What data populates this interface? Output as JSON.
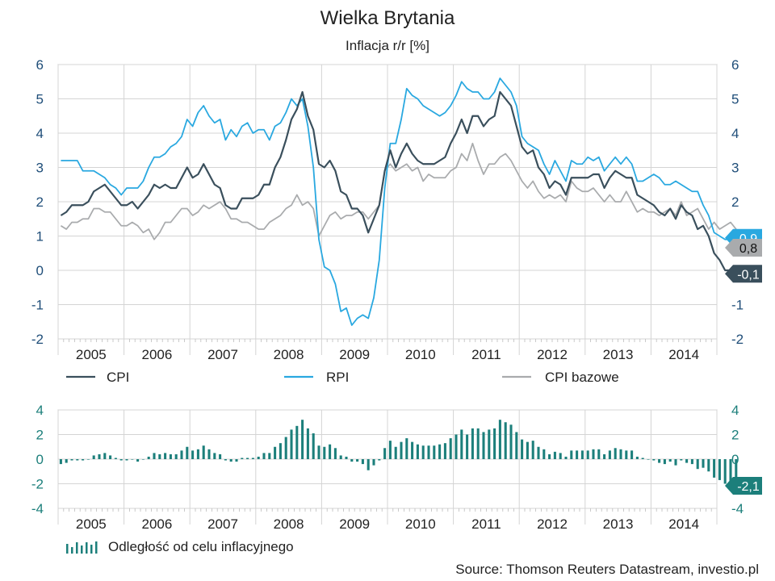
{
  "title": "Wielka Brytania",
  "subtitle": "Inflacja r/r [%]",
  "source": "Source: Thomson Reuters Datastream, investio.pl",
  "colors": {
    "cpi": "#3a4f5c",
    "rpi": "#29a8e0",
    "core": "#a9abad",
    "gap": "#1c7f7b",
    "grid": "#cfcfcf"
  },
  "chart_data": [
    {
      "type": "line",
      "title": "Wielka Brytania",
      "subtitle": "Inflacja r/r [%]",
      "x_labels": [
        "2005",
        "2006",
        "2007",
        "2008",
        "2009",
        "2010",
        "2011",
        "2012",
        "2013",
        "2014"
      ],
      "x_range": [
        "2005-01",
        "2014-12"
      ],
      "ylim": [
        -2,
        6
      ],
      "y_ticks": [
        -2,
        -1,
        0,
        1,
        2,
        3,
        4,
        5,
        6
      ],
      "y_tick_labels": [
        "-2",
        "-1",
        "0",
        "1",
        "2",
        "3",
        "4",
        "5",
        "6"
      ],
      "grid": true,
      "legend_position": "bottom",
      "series": [
        {
          "name": "CPI",
          "color": "#3a4f5c",
          "end_label": "-0,1",
          "values": [
            1.6,
            1.7,
            1.9,
            1.9,
            1.9,
            2.0,
            2.3,
            2.4,
            2.5,
            2.3,
            2.1,
            1.9,
            1.9,
            2.0,
            1.8,
            2.0,
            2.2,
            2.5,
            2.4,
            2.5,
            2.4,
            2.4,
            2.7,
            3.0,
            2.7,
            2.8,
            3.1,
            2.8,
            2.5,
            2.4,
            1.9,
            1.8,
            1.8,
            2.1,
            2.1,
            2.1,
            2.2,
            2.5,
            2.5,
            3.0,
            3.3,
            3.8,
            4.4,
            4.7,
            5.2,
            4.5,
            4.1,
            3.1,
            3.0,
            3.2,
            2.9,
            2.3,
            2.2,
            1.8,
            1.8,
            1.6,
            1.1,
            1.5,
            1.9,
            2.9,
            3.5,
            3.0,
            3.4,
            3.7,
            3.4,
            3.2,
            3.1,
            3.1,
            3.1,
            3.2,
            3.3,
            3.7,
            4.0,
            4.4,
            4.0,
            4.5,
            4.5,
            4.2,
            4.4,
            4.5,
            5.2,
            5.0,
            4.8,
            4.2,
            3.6,
            3.4,
            3.5,
            3.0,
            2.8,
            2.4,
            2.6,
            2.5,
            2.2,
            2.7,
            2.7,
            2.7,
            2.7,
            2.8,
            2.8,
            2.4,
            2.7,
            2.9,
            2.8,
            2.7,
            2.7,
            2.2,
            2.1,
            2.0,
            1.9,
            1.7,
            1.6,
            1.8,
            1.5,
            1.9,
            1.7,
            1.6,
            1.2,
            1.3,
            1.0,
            0.5,
            0.3,
            0.0,
            0.0,
            -0.1
          ]
        },
        {
          "name": "RPI",
          "color": "#29a8e0",
          "end_label": "0,9",
          "values": [
            3.2,
            3.2,
            3.2,
            3.2,
            2.9,
            2.9,
            2.9,
            2.8,
            2.7,
            2.5,
            2.4,
            2.2,
            2.4,
            2.4,
            2.4,
            2.6,
            3.0,
            3.3,
            3.3,
            3.4,
            3.6,
            3.7,
            3.9,
            4.4,
            4.2,
            4.6,
            4.8,
            4.5,
            4.3,
            4.4,
            3.8,
            4.1,
            3.9,
            4.2,
            4.3,
            4.0,
            4.1,
            4.1,
            3.8,
            4.2,
            4.3,
            4.6,
            5.0,
            4.8,
            5.0,
            4.2,
            3.0,
            0.9,
            0.1,
            0.0,
            -0.4,
            -1.2,
            -1.1,
            -1.6,
            -1.4,
            -1.3,
            -1.4,
            -0.8,
            0.3,
            2.4,
            3.7,
            3.7,
            4.4,
            5.3,
            5.1,
            5.0,
            4.8,
            4.7,
            4.6,
            4.5,
            4.6,
            4.8,
            5.1,
            5.5,
            5.3,
            5.2,
            5.2,
            5.0,
            5.0,
            5.2,
            5.6,
            5.4,
            5.2,
            4.8,
            3.9,
            3.7,
            3.6,
            3.5,
            3.1,
            2.8,
            3.2,
            2.9,
            2.6,
            3.2,
            3.1,
            3.1,
            3.3,
            3.2,
            3.3,
            2.9,
            3.1,
            3.3,
            3.1,
            3.3,
            3.1,
            2.6,
            2.6,
            2.7,
            2.8,
            2.7,
            2.5,
            2.5,
            2.6,
            2.5,
            2.4,
            2.3,
            2.3,
            1.9,
            1.6,
            1.1,
            1.0,
            0.9,
            0.9,
            0.9
          ]
        },
        {
          "name": "CPI bazowe",
          "color": "#a9abad",
          "end_label": "0,8",
          "values": [
            1.3,
            1.2,
            1.4,
            1.4,
            1.5,
            1.5,
            1.8,
            1.8,
            1.7,
            1.7,
            1.5,
            1.3,
            1.3,
            1.4,
            1.3,
            1.1,
            1.2,
            0.9,
            1.1,
            1.4,
            1.4,
            1.6,
            1.8,
            1.8,
            1.6,
            1.7,
            1.9,
            1.8,
            1.9,
            2.0,
            1.8,
            1.5,
            1.5,
            1.4,
            1.4,
            1.3,
            1.2,
            1.2,
            1.4,
            1.5,
            1.6,
            1.8,
            1.9,
            2.2,
            1.9,
            2.0,
            1.8,
            1.0,
            1.3,
            1.6,
            1.7,
            1.5,
            1.6,
            1.6,
            1.7,
            1.7,
            1.5,
            1.7,
            1.9,
            2.9,
            3.1,
            2.9,
            3.0,
            3.1,
            2.9,
            3.0,
            2.6,
            2.8,
            2.7,
            2.7,
            2.7,
            2.9,
            3.0,
            3.4,
            3.2,
            3.7,
            3.2,
            2.8,
            3.1,
            3.1,
            3.3,
            3.4,
            3.2,
            2.9,
            2.6,
            2.4,
            2.6,
            2.3,
            2.1,
            2.2,
            2.1,
            2.2,
            2.0,
            2.6,
            2.4,
            2.3,
            2.3,
            2.4,
            2.2,
            2.0,
            2.2,
            2.0,
            2.0,
            2.3,
            2.0,
            1.7,
            1.8,
            1.7,
            1.7,
            1.6,
            1.7,
            1.8,
            1.6,
            2.0,
            1.6,
            1.7,
            1.8,
            1.5,
            1.2,
            1.4,
            1.2,
            1.3,
            1.4,
            1.2,
            1.0,
            0.8
          ]
        }
      ]
    },
    {
      "type": "bar",
      "x_labels": [
        "2005",
        "2006",
        "2007",
        "2008",
        "2009",
        "2010",
        "2011",
        "2012",
        "2013",
        "2014"
      ],
      "x_range": [
        "2005-01",
        "2014-12"
      ],
      "ylim": [
        -4,
        4
      ],
      "y_ticks": [
        -4,
        -2,
        0,
        2,
        4
      ],
      "y_tick_labels": [
        "-4",
        "-2",
        "0",
        "2",
        "4"
      ],
      "grid": true,
      "series": [
        {
          "name": "Odległość od celu inflacyjnego",
          "color": "#1c7f7b",
          "end_label": "-2,1",
          "values": [
            -0.4,
            -0.3,
            -0.1,
            -0.1,
            -0.1,
            0.0,
            0.3,
            0.4,
            0.5,
            0.3,
            0.1,
            -0.1,
            -0.1,
            0.0,
            -0.2,
            0.0,
            0.2,
            0.5,
            0.4,
            0.5,
            0.4,
            0.4,
            0.7,
            1.0,
            0.7,
            0.8,
            1.1,
            0.8,
            0.5,
            0.4,
            -0.1,
            -0.2,
            -0.2,
            0.1,
            0.1,
            0.1,
            0.2,
            0.5,
            0.5,
            1.0,
            1.3,
            1.8,
            2.4,
            2.7,
            3.2,
            2.5,
            2.1,
            1.1,
            1.0,
            1.2,
            0.9,
            0.3,
            0.2,
            -0.2,
            -0.2,
            -0.4,
            -0.9,
            -0.5,
            -0.1,
            0.9,
            1.5,
            1.0,
            1.4,
            1.7,
            1.4,
            1.2,
            1.1,
            1.1,
            1.1,
            1.2,
            1.3,
            1.7,
            2.0,
            2.4,
            2.0,
            2.5,
            2.5,
            2.2,
            2.4,
            2.5,
            3.2,
            3.0,
            2.8,
            2.2,
            1.6,
            1.4,
            1.5,
            1.0,
            0.8,
            0.4,
            0.6,
            0.5,
            0.2,
            0.7,
            0.7,
            0.7,
            0.7,
            0.8,
            0.8,
            0.4,
            0.7,
            0.9,
            0.8,
            0.7,
            0.7,
            0.2,
            0.1,
            0.0,
            -0.1,
            -0.3,
            -0.4,
            -0.2,
            -0.5,
            -0.1,
            -0.3,
            -0.4,
            -0.8,
            -0.7,
            -1.0,
            -1.5,
            -1.7,
            -2.0,
            -2.0,
            -2.1
          ]
        }
      ]
    }
  ]
}
